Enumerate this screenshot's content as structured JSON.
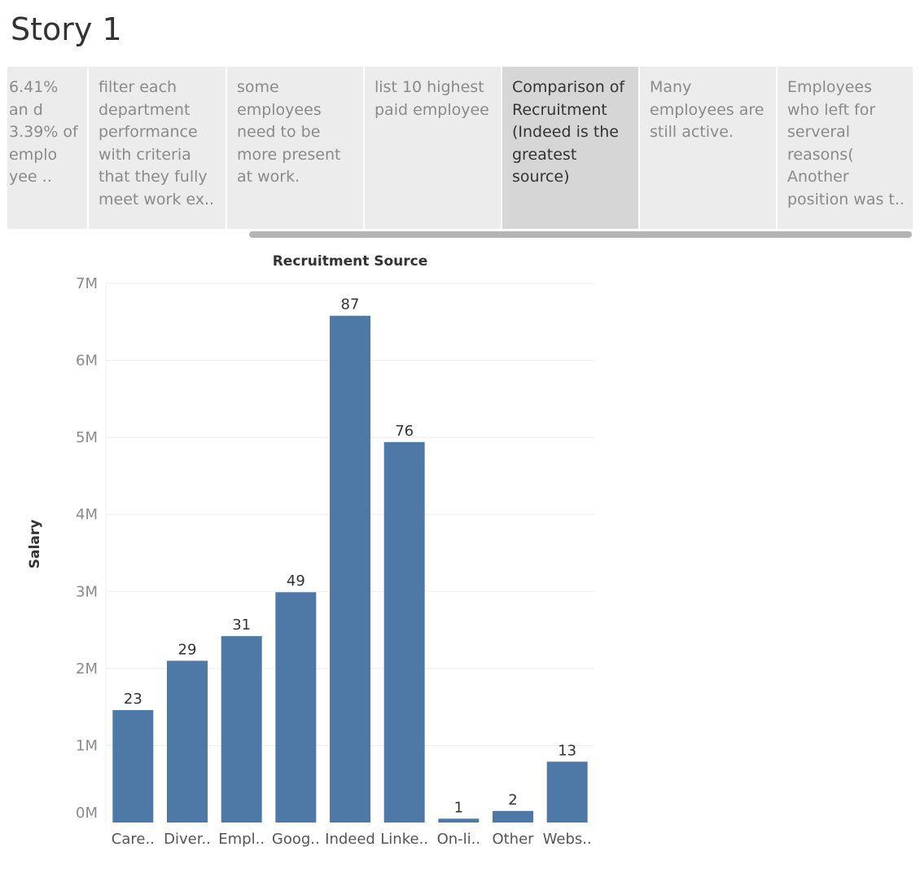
{
  "story": {
    "title": "Story 1",
    "points": [
      {
        "text": "6.41% an d 3.39% of emplo yee ..",
        "active": false
      },
      {
        "text": "filter each department performance with criteria that they fully meet work ex..",
        "active": false
      },
      {
        "text": "some employees need to be more present at work.",
        "active": false
      },
      {
        "text": "list 10 highest paid employee",
        "active": false
      },
      {
        "text": "Comparison of Recruitment (Indeed is the greatest source)",
        "active": true
      },
      {
        "text": "Many employees are still active.",
        "active": false
      },
      {
        "text": "Employees who left for serveral reasons( Another position was t..",
        "active": false
      }
    ]
  },
  "chart_data": {
    "type": "bar",
    "title": "Recruitment Source",
    "xlabel": "",
    "ylabel": "Salary",
    "categories": [
      "Care..",
      "Diver..",
      "Empl..",
      "Goog..",
      "Indeed",
      "Linke..",
      "On-li..",
      "Other",
      "Webs.."
    ],
    "values": [
      1460000,
      2100000,
      2420000,
      2990000,
      6580000,
      4940000,
      50000,
      150000,
      790000
    ],
    "data_labels": [
      "23",
      "29",
      "31",
      "49",
      "87",
      "76",
      "1",
      "2",
      "13"
    ],
    "y_ticks": [
      "0M",
      "1M",
      "2M",
      "3M",
      "4M",
      "5M",
      "6M",
      "7M"
    ],
    "ylim": [
      0,
      7000000
    ],
    "bar_color": "#4e79a7",
    "grid": true
  }
}
